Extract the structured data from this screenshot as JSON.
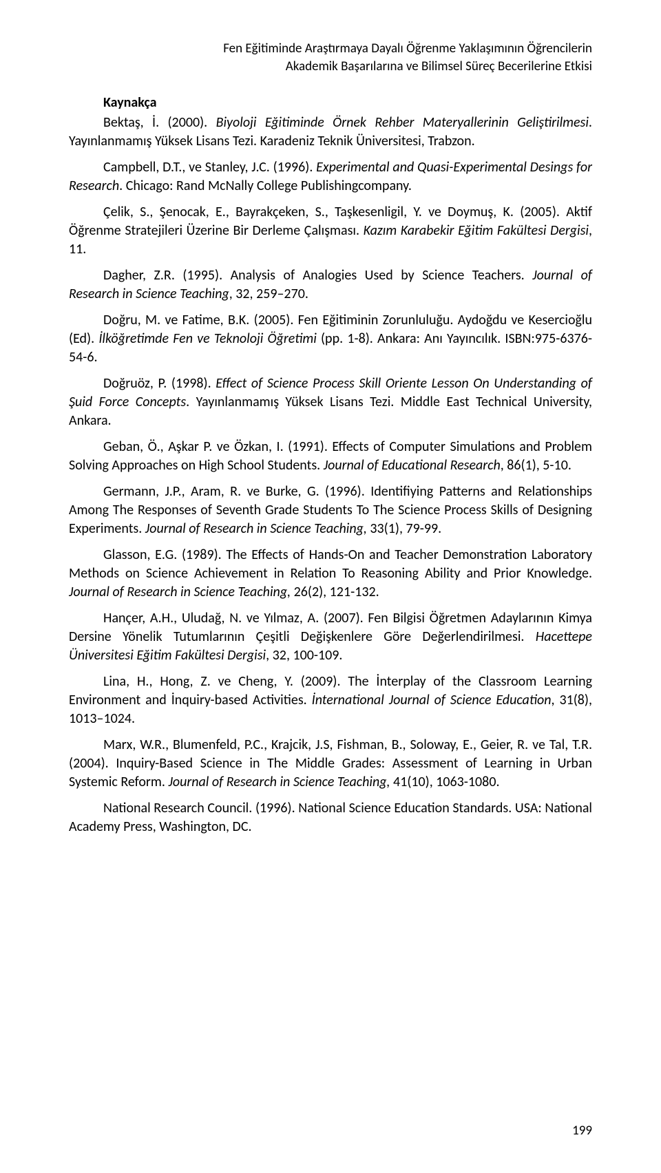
{
  "header": {
    "line1": "Fen Eğitiminde Araştırmaya Dayalı Öğrenme Yaklaşımının Öğrencilerin",
    "line2": "Akademik Başarılarına ve Bilimsel Süreç Becerilerine Etkisi"
  },
  "sectionTitle": "Kaynakça",
  "references": [
    {
      "pre": "Bektaş, İ. (2000). ",
      "italic": "Biyoloji Eğitiminde Örnek Rehber Materyallerinin Geliştirilmesi",
      "post": ". Yayınlanmamış Yüksek Lisans Tezi. Karadeniz Teknik Üniversitesi, Trabzon."
    },
    {
      "pre": "Campbell, D.T., ve Stanley, J.C. (1996). ",
      "italic": "Experimental and Quasi-Experimental Desings for Research",
      "post": ". Chicago: Rand McNally College Publishingcompany."
    },
    {
      "pre": "Çelik, S., Şenocak, E., Bayrakçeken, S., Taşkesenligil, Y. ve Doymuş, K. (2005). Aktif Öğrenme Stratejileri Üzerine Bir Derleme Çalışması. ",
      "italic": "Kazım Karabekir Eğitim Fakültesi Dergisi",
      "post": ", 11."
    },
    {
      "pre": "Dagher, Z.R. (1995). Analysis of Analogies Used by Science Teachers. ",
      "italic": "Journal of Research in Science Teaching",
      "post": ", 32, 259–270."
    },
    {
      "pre": "Doğru, M. ve Fatime, B.K. (2005). Fen Eğitiminin Zorunluluğu. Aydoğdu ve Kesercioğlu (Ed). ",
      "italic": "İlköğretimde Fen ve Teknoloji Öğretimi",
      "post": " (pp. 1-8). Ankara: Anı Yayıncılık. ISBN:975-6376-54-6."
    },
    {
      "pre": "Doğruöz, P. (1998). ",
      "italic": "Effect of Science Process Skill Oriente Lesson On Understanding of Şuid Force Concepts",
      "post": ". Yayınlanmamış Yüksek Lisans Tezi. Middle East Technical University, Ankara."
    },
    {
      "pre": "Geban, Ö., Aşkar P. ve Özkan, I. (1991). Effects of Computer Simulations and Problem Solving Approaches on High School Students. ",
      "italic": "Journal of Educational Research",
      "post": ", 86(1), 5-10."
    },
    {
      "pre": "Germann, J.P., Aram, R. ve Burke, G. (1996). Identifiying Patterns and Relationships Among The Responses of Seventh Grade Students To The Science Process Skills of Designing Experiments. ",
      "italic": "Journal of Research in Science Teaching,",
      "post": " 33(1), 79-99."
    },
    {
      "pre": "Glasson, E.G. (1989). The Effects of Hands-On and Teacher Demonstration Laboratory Methods on Science Achievement in Relation To Reasoning Ability and Prior Knowledge. ",
      "italic": "Journal of Research in Science Teaching,",
      "post": " 26(2), 121-132."
    },
    {
      "pre": "Hançer, A.H.,  Uludağ, N. ve Yılmaz, A. (2007). Fen Bilgisi Öğretmen Adaylarının Kimya Dersine Yönelik Tutumlarının Çeşitli Değişkenlere Göre Değerlendirilmesi. ",
      "italic": "Hacettepe Üniversitesi Eğitim Fakültesi Dergisi",
      "post": ", 32, 100-109."
    },
    {
      "pre": "Lina, H., Hong, Z. ve Cheng, Y. (2009). The İnterplay of the Classroom Learning Environment and İnquiry-based Activities. ",
      "italic": "İnternational Journal of Science Education",
      "post": ",  31(8), 1013–1024."
    },
    {
      "pre": "Marx, W.R., Blumenfeld, P.C., Krajcik, J.S, Fishman, B., Soloway, E., Geier, R. ve Tal, T.R. (2004). Inquiry-Based Science in The Middle Grades: Assessment of Learning in Urban Systemic Reform. ",
      "italic": "Journal of Research in Science Teaching,",
      "post": " 41(10), 1063-1080."
    },
    {
      "pre": "National Research Council. (1996). National Science Education Standards. USA: National Academy Press, Washington, DC.",
      "italic": "",
      "post": ""
    }
  ],
  "pageNumber": "199"
}
